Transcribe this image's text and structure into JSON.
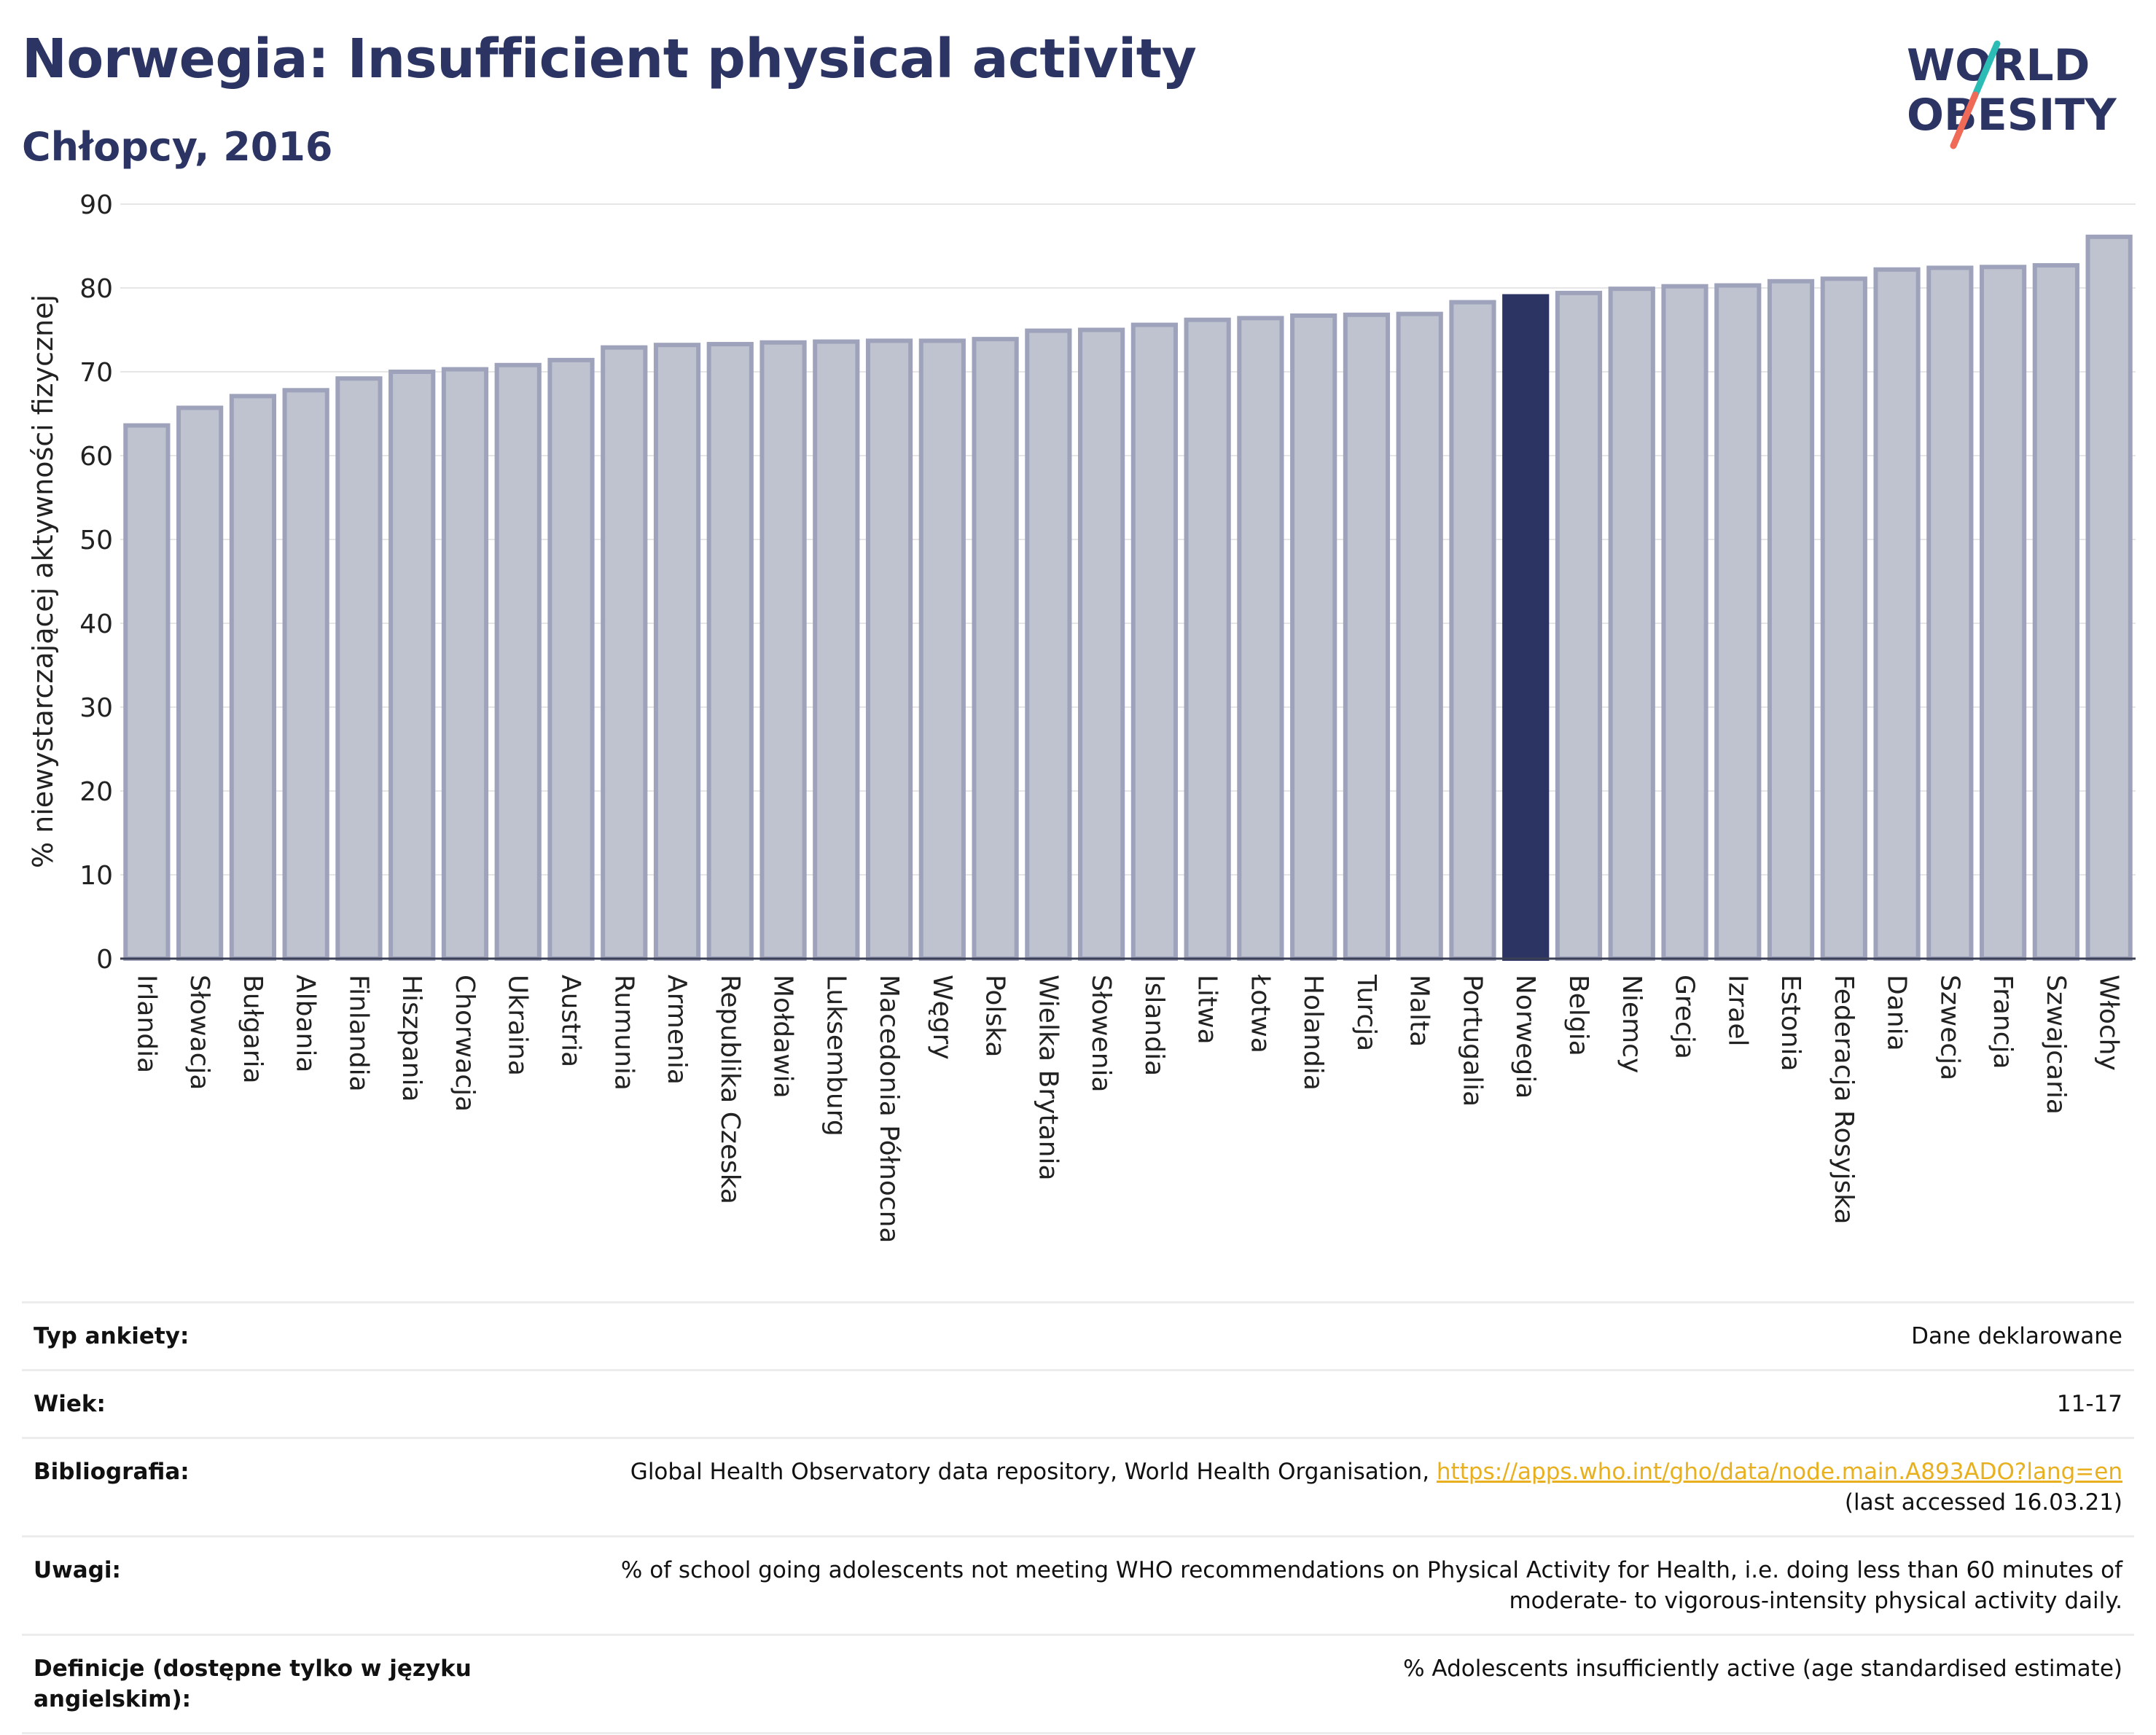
{
  "header": {
    "title": "Norwegia: Insufficient physical activity",
    "subtitle": "Chłopcy, 2016"
  },
  "logo": {
    "line1": "WORLD",
    "line2": "OBESITY",
    "colors": {
      "text": "#2b3463",
      "slash_teal": "#2bbdb5",
      "slash_coral": "#ef6a57"
    }
  },
  "chart_data": {
    "type": "bar",
    "title": "",
    "xlabel": "",
    "ylabel": "% niewystarczającej aktywności fizycznej",
    "ylim": [
      0,
      90
    ],
    "yticks": [
      0,
      10,
      20,
      30,
      40,
      50,
      60,
      70,
      80,
      90
    ],
    "grid": true,
    "highlight": "Norwegia",
    "colors": {
      "bar": "#bfc2cf",
      "bar_edge": "#9ea3bb",
      "highlight": "#2b3463",
      "grid": "#e6e6e6"
    },
    "categories": [
      "Irlandia",
      "Słowacja",
      "Bułgaria",
      "Albania",
      "Finlandia",
      "Hiszpania",
      "Chorwacja",
      "Ukraina",
      "Austria",
      "Rumunia",
      "Armenia",
      "Republika Czeska",
      "Mołdawia",
      "Luksemburg",
      "Macedonia Północna",
      "Węgry",
      "Polska",
      "Wielka Brytania",
      "Słowenia",
      "Islandia",
      "Litwa",
      "Łotwa",
      "Holandia",
      "Turcja",
      "Malta",
      "Portugalia",
      "Norwegia",
      "Belgia",
      "Niemcy",
      "Grecja",
      "Izrael",
      "Estonia",
      "Federacja Rosyjska",
      "Dania",
      "Szwecja",
      "Francja",
      "Szwajcaria",
      "Włochy"
    ],
    "values": [
      63.6,
      65.7,
      67.1,
      67.8,
      69.2,
      70.0,
      70.3,
      70.8,
      71.4,
      72.9,
      73.2,
      73.3,
      73.5,
      73.6,
      73.7,
      73.7,
      73.9,
      74.9,
      75.0,
      75.6,
      76.2,
      76.4,
      76.7,
      76.8,
      76.9,
      78.3,
      79.0,
      79.4,
      79.9,
      80.2,
      80.3,
      80.8,
      81.1,
      82.2,
      82.4,
      82.5,
      82.7,
      86.1
    ]
  },
  "details": {
    "survey_label": "Typ ankiety:",
    "survey_value": "Dane deklarowane",
    "age_label": "Wiek:",
    "age_value": "11-17",
    "biblio_label": "Bibliografia:",
    "biblio_text": "Global Health Observatory data repository, World Health Organisation, ",
    "biblio_link": "https://apps.who.int/gho/data/node.main.A893ADO?lang=en",
    "biblio_accessed": "(last accessed 16.03.21)",
    "notes_label": "Uwagi:",
    "notes_value": "% of school going adolescents not meeting WHO recommendations on Physical Activity for Health, i.e. doing less than 60 minutes of moderate- to vigorous-intensity physical activity daily.",
    "definition_label": "Definicje (dostępne tylko w języku angielskim):",
    "definition_value": "% Adolescents insufficiently active (age standardised estimate)"
  }
}
